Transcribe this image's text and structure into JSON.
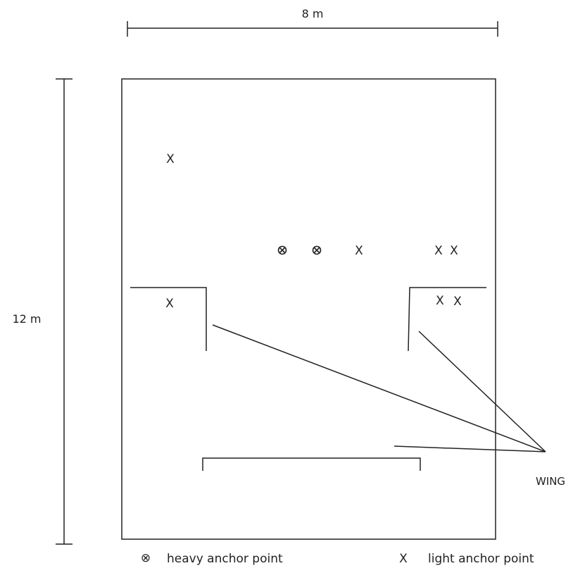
{
  "dimensions": {
    "width_label": "8 m",
    "height_label": "12 m"
  },
  "markers": {
    "light_symbol": "X",
    "heavy_symbol": "⊗"
  },
  "callout": {
    "label": "WING"
  },
  "legend": {
    "heavy_label": "heavy anchor point",
    "light_label": "light anchor point",
    "heavy_symbol": "⊗",
    "light_symbol": "X"
  }
}
